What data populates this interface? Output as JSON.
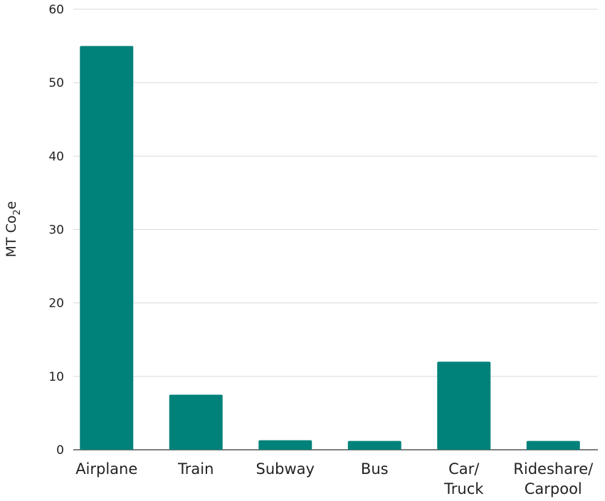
{
  "chart_data": {
    "type": "bar",
    "categories": [
      [
        "Airplane"
      ],
      [
        "Train"
      ],
      [
        "Subway"
      ],
      [
        "Bus"
      ],
      [
        "Car/",
        "Truck"
      ],
      [
        "Rideshare/",
        "Carpool"
      ]
    ],
    "values": [
      55,
      7.5,
      1.3,
      1.2,
      12,
      1.2
    ],
    "ylabel": {
      "main": "MT Co",
      "sub": "2",
      "tail": "e"
    },
    "ylim": [
      0,
      60
    ],
    "yticks": [
      0,
      10,
      20,
      30,
      40,
      50,
      60
    ],
    "grid": true,
    "legend": "none",
    "bar_color": "#00827a",
    "grid_color": "#d9d9d9"
  }
}
